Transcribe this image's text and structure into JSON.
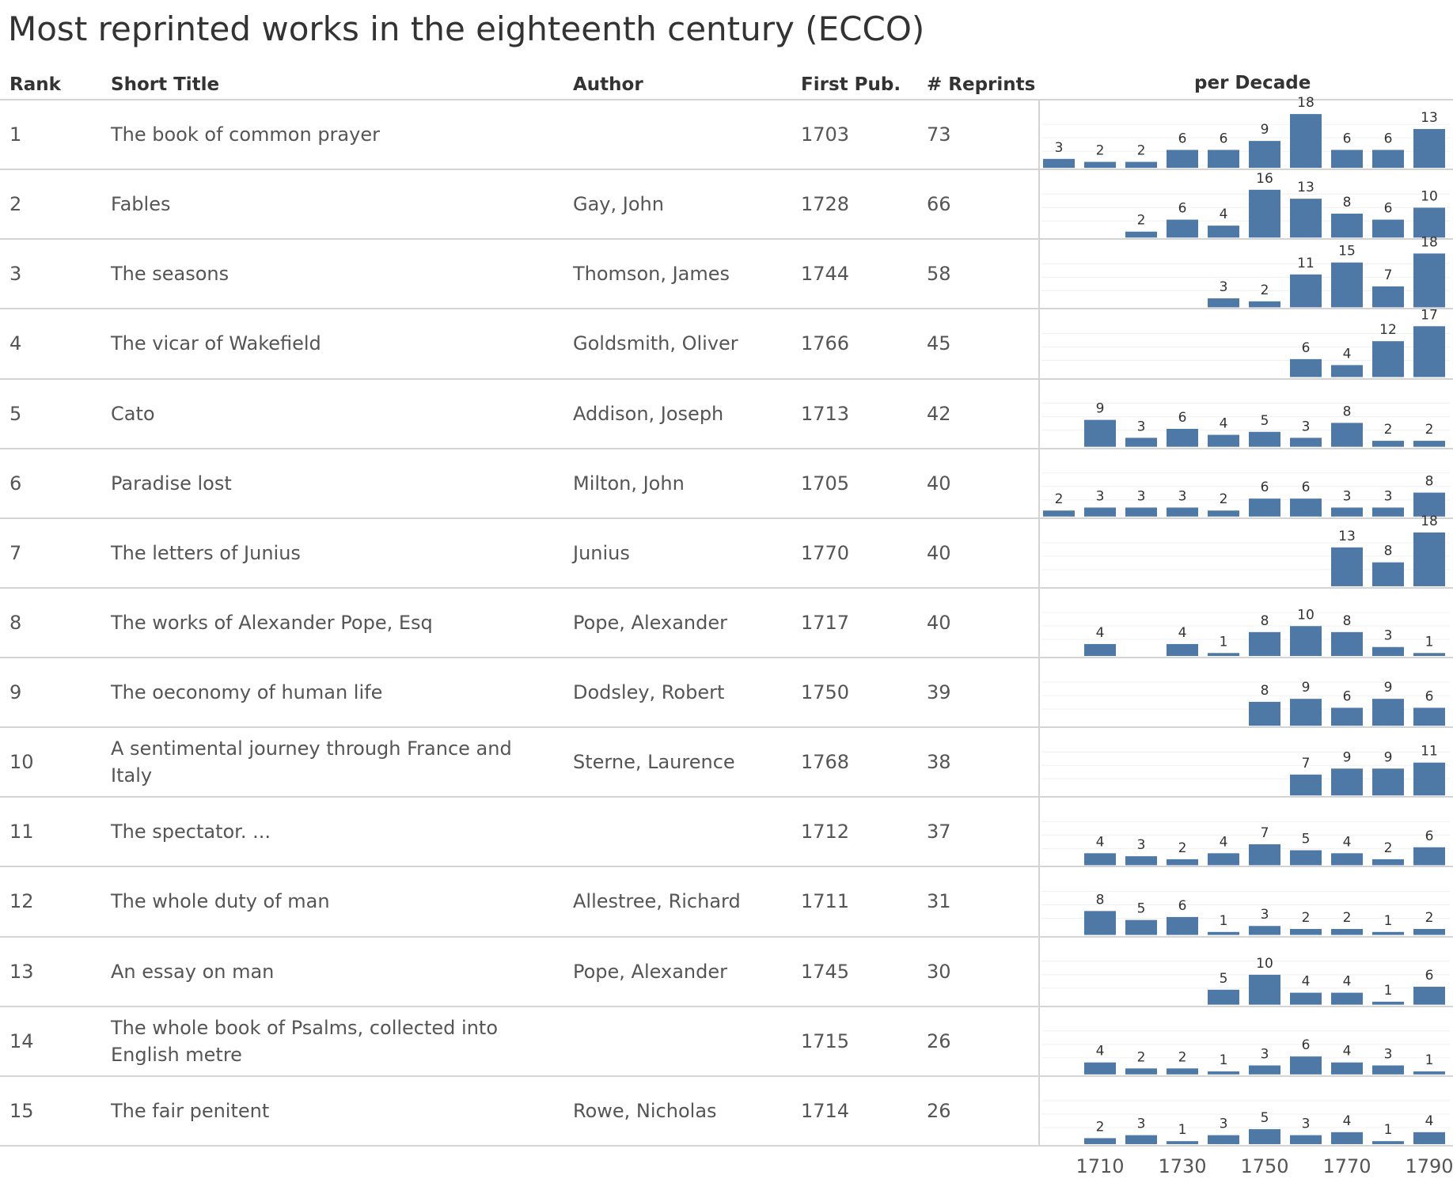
{
  "title": "Most reprinted works in the eighteenth century (ECCO)",
  "columns": {
    "rank": "Rank",
    "title": "Short Title",
    "author": "Author",
    "first_pub": "First Pub.",
    "reprints": "# Reprints",
    "per_decade": "per Decade"
  },
  "rows": [
    {
      "rank": "1",
      "title": "The book of common prayer",
      "author": "",
      "first_pub": "1703",
      "reprints": "73"
    },
    {
      "rank": "2",
      "title": "Fables",
      "author": "Gay, John",
      "first_pub": "1728",
      "reprints": "66"
    },
    {
      "rank": "3",
      "title": "The seasons",
      "author": "Thomson, James",
      "first_pub": "1744",
      "reprints": "58"
    },
    {
      "rank": "4",
      "title": "The vicar of Wakefield",
      "author": "Goldsmith, Oliver",
      "first_pub": "1766",
      "reprints": "45"
    },
    {
      "rank": "5",
      "title": "Cato",
      "author": "Addison, Joseph",
      "first_pub": "1713",
      "reprints": "42"
    },
    {
      "rank": "6",
      "title": "Paradise lost",
      "author": "Milton, John",
      "first_pub": "1705",
      "reprints": "40"
    },
    {
      "rank": "7",
      "title": "The letters of Junius",
      "author": "Junius",
      "first_pub": "1770",
      "reprints": "40"
    },
    {
      "rank": "8",
      "title": "The works of Alexander Pope, Esq",
      "author": "Pope, Alexander",
      "first_pub": "1717",
      "reprints": "40"
    },
    {
      "rank": "9",
      "title": "The oeconomy of human life",
      "author": "Dodsley, Robert",
      "first_pub": "1750",
      "reprints": "39"
    },
    {
      "rank": "10",
      "title": "A sentimental journey through France and Italy",
      "author": "Sterne, Laurence",
      "first_pub": "1768",
      "reprints": "38"
    },
    {
      "rank": "11",
      "title": "The spectator. ...",
      "author": "",
      "first_pub": "1712",
      "reprints": "37"
    },
    {
      "rank": "12",
      "title": "The whole duty of man",
      "author": "Allestree, Richard",
      "first_pub": "1711",
      "reprints": "31"
    },
    {
      "rank": "13",
      "title": "An essay on man",
      "author": "Pope, Alexander",
      "first_pub": "1745",
      "reprints": "30"
    },
    {
      "rank": "14",
      "title": "The whole book of Psalms, collected into English metre",
      "author": "",
      "first_pub": "1715",
      "reprints": "26"
    },
    {
      "rank": "15",
      "title": "The fair penitent",
      "author": "Rowe, Nicholas",
      "first_pub": "1714",
      "reprints": "26"
    }
  ],
  "chart_data": {
    "type": "bar",
    "title": "per Decade",
    "categories": [
      "1700",
      "1710",
      "1720",
      "1730",
      "1740",
      "1750",
      "1760",
      "1770",
      "1780",
      "1790"
    ],
    "x_tick_labels": [
      "1710",
      "1730",
      "1750",
      "1770",
      "1790"
    ],
    "ylim": [
      0,
      18
    ],
    "bar_color": "#4e79a7",
    "grid": true,
    "series": [
      {
        "values": [
          3,
          2,
          2,
          6,
          6,
          9,
          18,
          6,
          6,
          13
        ]
      },
      {
        "values": [
          null,
          null,
          2,
          6,
          4,
          16,
          13,
          8,
          6,
          10
        ]
      },
      {
        "values": [
          null,
          null,
          null,
          null,
          3,
          2,
          11,
          15,
          7,
          18
        ]
      },
      {
        "values": [
          null,
          null,
          null,
          null,
          null,
          null,
          6,
          4,
          12,
          17
        ]
      },
      {
        "values": [
          null,
          9,
          3,
          6,
          4,
          5,
          3,
          8,
          2,
          2
        ]
      },
      {
        "values": [
          2,
          3,
          3,
          3,
          2,
          6,
          6,
          3,
          3,
          8
        ]
      },
      {
        "values": [
          null,
          null,
          null,
          null,
          null,
          null,
          null,
          13,
          8,
          18
        ]
      },
      {
        "values": [
          null,
          4,
          null,
          4,
          1,
          8,
          10,
          8,
          3,
          1
        ]
      },
      {
        "values": [
          null,
          null,
          null,
          null,
          null,
          8,
          9,
          6,
          9,
          6
        ]
      },
      {
        "values": [
          null,
          null,
          null,
          null,
          null,
          null,
          7,
          9,
          9,
          11
        ]
      },
      {
        "values": [
          null,
          4,
          3,
          2,
          4,
          7,
          5,
          4,
          2,
          6
        ]
      },
      {
        "values": [
          null,
          8,
          5,
          6,
          1,
          3,
          2,
          2,
          1,
          2
        ]
      },
      {
        "values": [
          null,
          null,
          null,
          null,
          5,
          10,
          4,
          4,
          1,
          6
        ]
      },
      {
        "values": [
          null,
          4,
          2,
          2,
          1,
          3,
          6,
          4,
          3,
          1
        ]
      },
      {
        "values": [
          null,
          2,
          3,
          1,
          3,
          5,
          3,
          4,
          1,
          4
        ]
      }
    ]
  }
}
